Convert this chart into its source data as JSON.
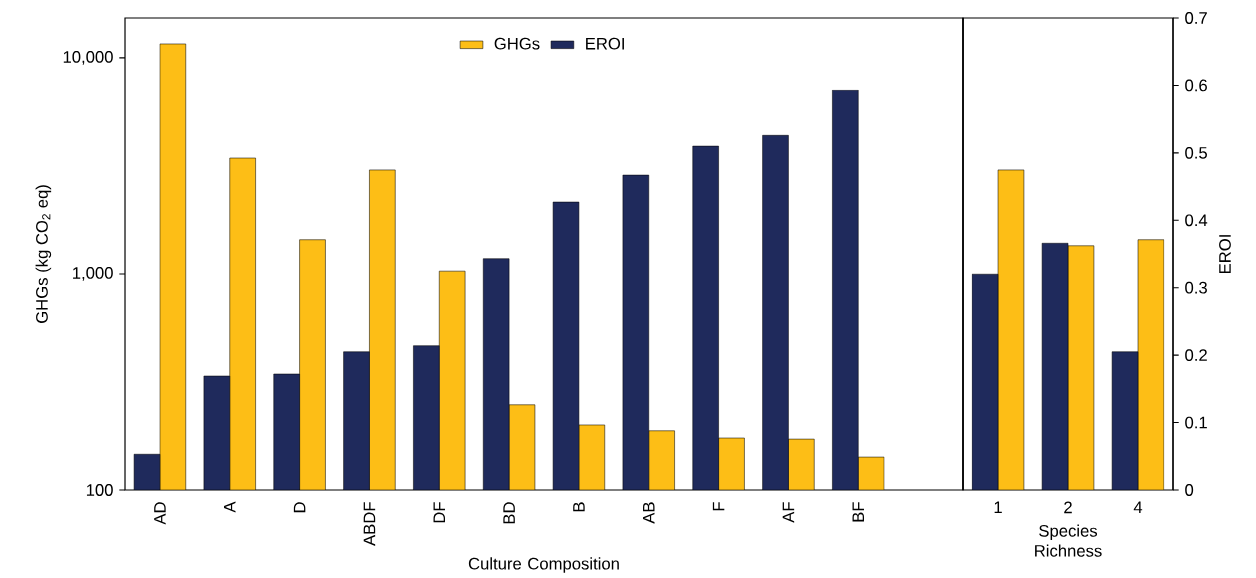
{
  "chart_data": [
    {
      "type": "bar",
      "categories": [
        "AD",
        "A",
        "D",
        "ABDF",
        "DF",
        "BD",
        "B",
        "AB",
        "F",
        "AF",
        "BF",
        null
      ],
      "series": [
        {
          "name": "GHGs",
          "color": "#fdbe16",
          "axis": "y",
          "values": [
            11600,
            3440,
            1440,
            3030,
            1030,
            248,
            200,
            188,
            174,
            172,
            142,
            null
          ]
        },
        {
          "name": "EROI",
          "color": "#1f2a5c",
          "axis": "y2",
          "values": [
            0.053,
            0.169,
            0.172,
            0.205,
            0.214,
            0.343,
            0.427,
            0.467,
            0.51,
            0.526,
            0.593,
            null
          ]
        }
      ],
      "xlabel": "Culture Composition",
      "ylabel": "GHGs (kg CO$_{2}$ eq)",
      "log": "y",
      "ylim": [
        100,
        15300
      ],
      "yticks": [
        100,
        {
          "value": 1000,
          "label": "1,000"
        },
        {
          "value": 10000,
          "label": "10,000"
        }
      ],
      "y2lim": [
        0,
        0.7
      ],
      "legend": "top",
      "tick_labels": [
        "x",
        "y"
      ]
    },
    {
      "type": "bar",
      "categories": [
        "1",
        "2",
        "4"
      ],
      "series": [
        {
          "color": "#fdbe16",
          "axis": "y",
          "values": [
            3030,
            1350,
            1440
          ]
        },
        {
          "color": "#1f2a5c",
          "axis": "y2",
          "values": [
            0.32,
            0.366,
            0.205
          ]
        }
      ],
      "xlabel": "Species Richness",
      "y2label": "EROI",
      "log": "y",
      "ylim": [
        100,
        15300
      ],
      "y2lim": [
        0,
        0.7
      ],
      "y2ticks": [
        0,
        0.1,
        0.2,
        0.3,
        0.4,
        0.5,
        0.6,
        0.7
      ],
      "tick_labels": [
        "x",
        "y2"
      ]
    }
  ]
}
